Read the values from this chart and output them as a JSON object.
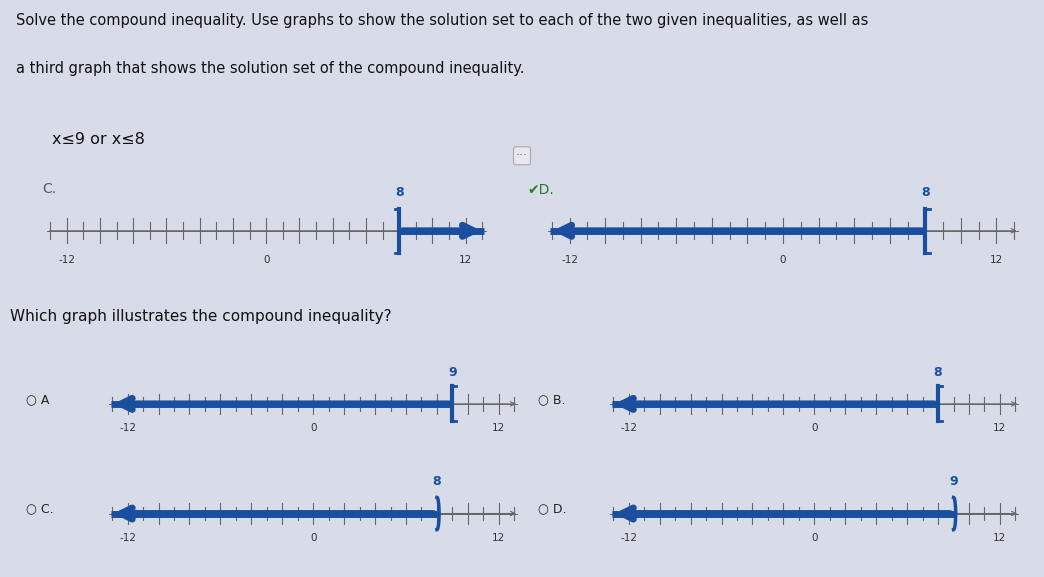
{
  "title_line1": "Solve the compound inequality. Use graphs to show the solution set to each of the two given inequalities, as well as",
  "title_line2": "a third graph that shows the solution set of the compound inequality.",
  "inequality_text": "x≤9 or x≤8",
  "question": "Which graph illustrates the compound inequality?",
  "bg_top": "#d8dce8",
  "bg_bottom": "#e0e4ec",
  "line_color": "#1a4fa0",
  "text_dark": "#222222",
  "text_label": "#555566",
  "tick_every": 1,
  "xmin": -13,
  "xmax": 13,
  "top_graphs": [
    {
      "id": "C.",
      "point": 8,
      "direction": "right",
      "closed": true
    },
    {
      "id": "D.",
      "point": 8,
      "direction": "left",
      "closed": true
    }
  ],
  "bottom_graphs": [
    {
      "id": "A",
      "point": 9,
      "direction": "left",
      "closed": true
    },
    {
      "id": "B",
      "point": 8,
      "direction": "left",
      "closed": true
    },
    {
      "id": "C",
      "point": 8,
      "direction": "left",
      "closed": false
    },
    {
      "id": "D",
      "point": 9,
      "direction": "left",
      "closed": false
    }
  ]
}
